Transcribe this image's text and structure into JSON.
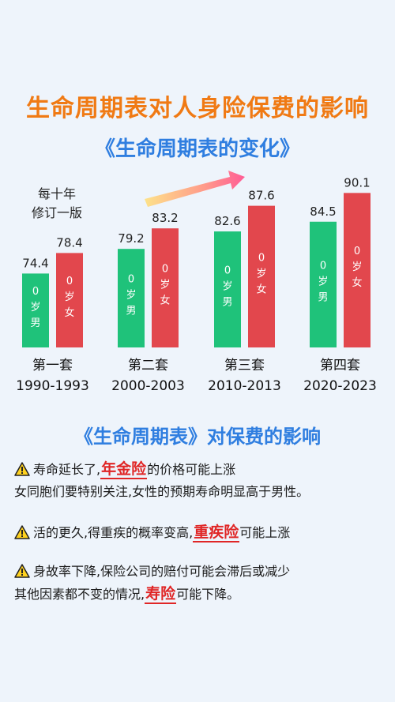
{
  "header": {
    "title": "生命周期表对人身险保费的影响",
    "subtitle": "《生命周期表的变化》",
    "note_line1": "每十年",
    "note_line2": "修订一版"
  },
  "chart_data": {
    "type": "bar",
    "categories": [
      {
        "name": "第一套",
        "years": "1990-1993"
      },
      {
        "name": "第二套",
        "years": "2000-2003"
      },
      {
        "name": "第三套",
        "years": "2010-2013"
      },
      {
        "name": "第四套",
        "years": "2020-2023"
      }
    ],
    "series": [
      {
        "name": "0岁男",
        "values": [
          74.4,
          79.2,
          82.6,
          84.5
        ]
      },
      {
        "name": "0岁女",
        "values": [
          78.4,
          83.2,
          87.6,
          90.1
        ]
      }
    ],
    "colors": {
      "male": "#1fc27a",
      "female": "#e2474d"
    },
    "ylim": [
      60,
      92
    ]
  },
  "impact": {
    "title": "《生命周期表》对保费的影响",
    "items": [
      {
        "pre": "寿命延长了,",
        "highlight": "年金险",
        "post": "的价格可能上涨",
        "line2": "女同胞们要特别关注,女性的预期寿命明显高于男性。"
      },
      {
        "pre": "活的更久,得重疾的概率变高,",
        "highlight": "重疾险",
        "post": "可能上涨",
        "line2": ""
      },
      {
        "pre": "身故率下降,保险公司的赔付可能会滞后或减少",
        "highlight": "",
        "post": "",
        "line2": "其他因素都不变的情况,",
        "highlight2": "寿险",
        "post2": "可能下降。"
      }
    ]
  },
  "icons": {
    "warning": "warning-icon",
    "arrow": "trend-arrow-icon"
  }
}
